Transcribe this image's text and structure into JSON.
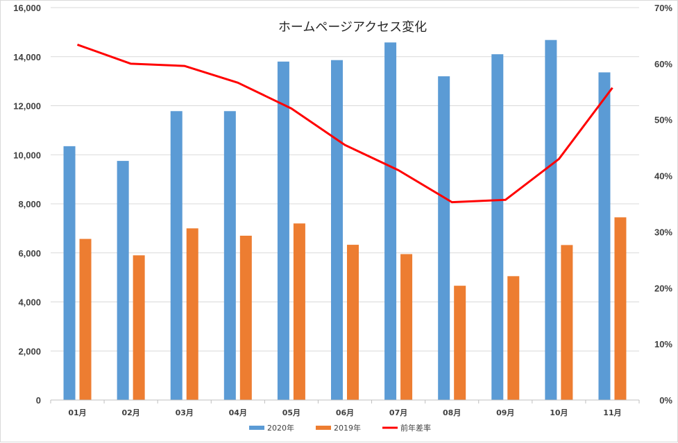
{
  "chart_data": {
    "type": "bar",
    "title": "ホームページアクセス変化",
    "categories": [
      "01月",
      "02月",
      "03月",
      "04月",
      "05月",
      "06月",
      "07月",
      "08月",
      "09月",
      "10月",
      "11月"
    ],
    "series": [
      {
        "name": "2020年",
        "kind": "bar",
        "axis": "left",
        "color": "#5B9BD5",
        "values": [
          10350,
          9750,
          11780,
          11780,
          13800,
          13860,
          14580,
          13200,
          14100,
          14680,
          13360
        ]
      },
      {
        "name": "2019年",
        "kind": "bar",
        "axis": "left",
        "color": "#ED7D31",
        "values": [
          6570,
          5900,
          7000,
          6700,
          7200,
          6330,
          5950,
          4660,
          5050,
          6320,
          7450
        ]
      },
      {
        "name": "前年差率",
        "kind": "line",
        "axis": "right",
        "color": "#FF0000",
        "values": [
          0.634,
          0.6,
          0.596,
          0.566,
          0.52,
          0.455,
          0.41,
          0.353,
          0.357,
          0.43,
          0.557
        ]
      }
    ],
    "y_left": {
      "ylim": [
        0,
        16000
      ],
      "ticks": [
        "0",
        "2,000",
        "4,000",
        "6,000",
        "8,000",
        "10,000",
        "12,000",
        "14,000",
        "16,000"
      ]
    },
    "y_right": {
      "ylim": [
        0,
        0.7
      ],
      "ticks": [
        "0%",
        "10%",
        "20%",
        "30%",
        "40%",
        "50%",
        "60%",
        "70%"
      ]
    },
    "xlabel": "",
    "ylabel": "",
    "grid": true,
    "legend_position": "bottom"
  }
}
